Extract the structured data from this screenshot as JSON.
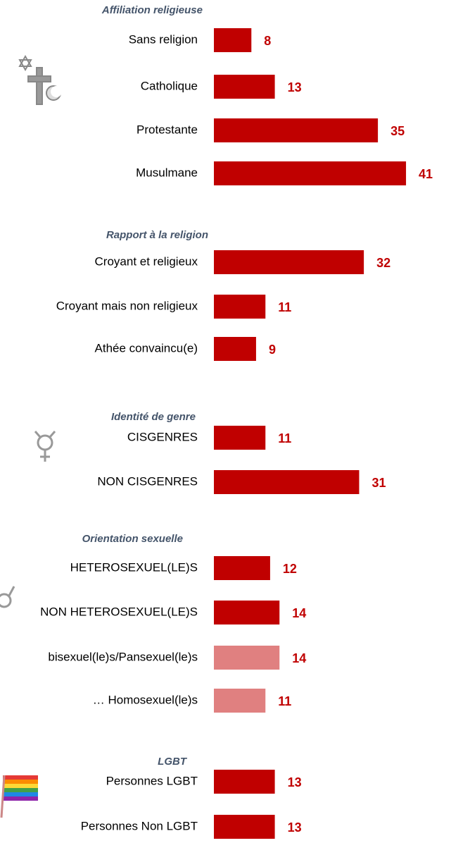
{
  "chart_data": [
    {
      "type": "bar",
      "title": "Affiliation religieuse",
      "categories": [
        "Sans religion",
        "Catholique",
        "Protestante",
        "Musulmane"
      ],
      "values": [
        8,
        13,
        35,
        41
      ],
      "colors": [
        "#c00000",
        "#c00000",
        "#c00000",
        "#c00000"
      ]
    },
    {
      "type": "bar",
      "title": "Rapport à la religion",
      "categories": [
        "Croyant et religieux",
        "Croyant mais non religieux",
        "Athée convaincu(e)"
      ],
      "values": [
        32,
        11,
        9
      ],
      "colors": [
        "#c00000",
        "#c00000",
        "#c00000"
      ]
    },
    {
      "type": "bar",
      "title": "Identité de genre",
      "categories": [
        "CISGENRES",
        "NON CISGENRES"
      ],
      "values": [
        11,
        31
      ],
      "colors": [
        "#c00000",
        "#c00000"
      ]
    },
    {
      "type": "bar",
      "title": "Orientation sexuelle",
      "categories": [
        "HETEROSEXUEL(LE)S",
        "NON HETEROSEXUEL(LE)S",
        "bisexuel(le)s/Pansexuel(le)s",
        "… Homosexuel(le)s"
      ],
      "values": [
        12,
        14,
        14,
        11
      ],
      "colors": [
        "#c00000",
        "#c00000",
        "#e08080",
        "#e08080"
      ]
    },
    {
      "type": "bar",
      "title": "LGBT",
      "categories": [
        "Personnes LGBT",
        "Personnes Non LGBT"
      ],
      "values": [
        13,
        13
      ],
      "colors": [
        "#c00000",
        "#c00000"
      ]
    }
  ]
}
